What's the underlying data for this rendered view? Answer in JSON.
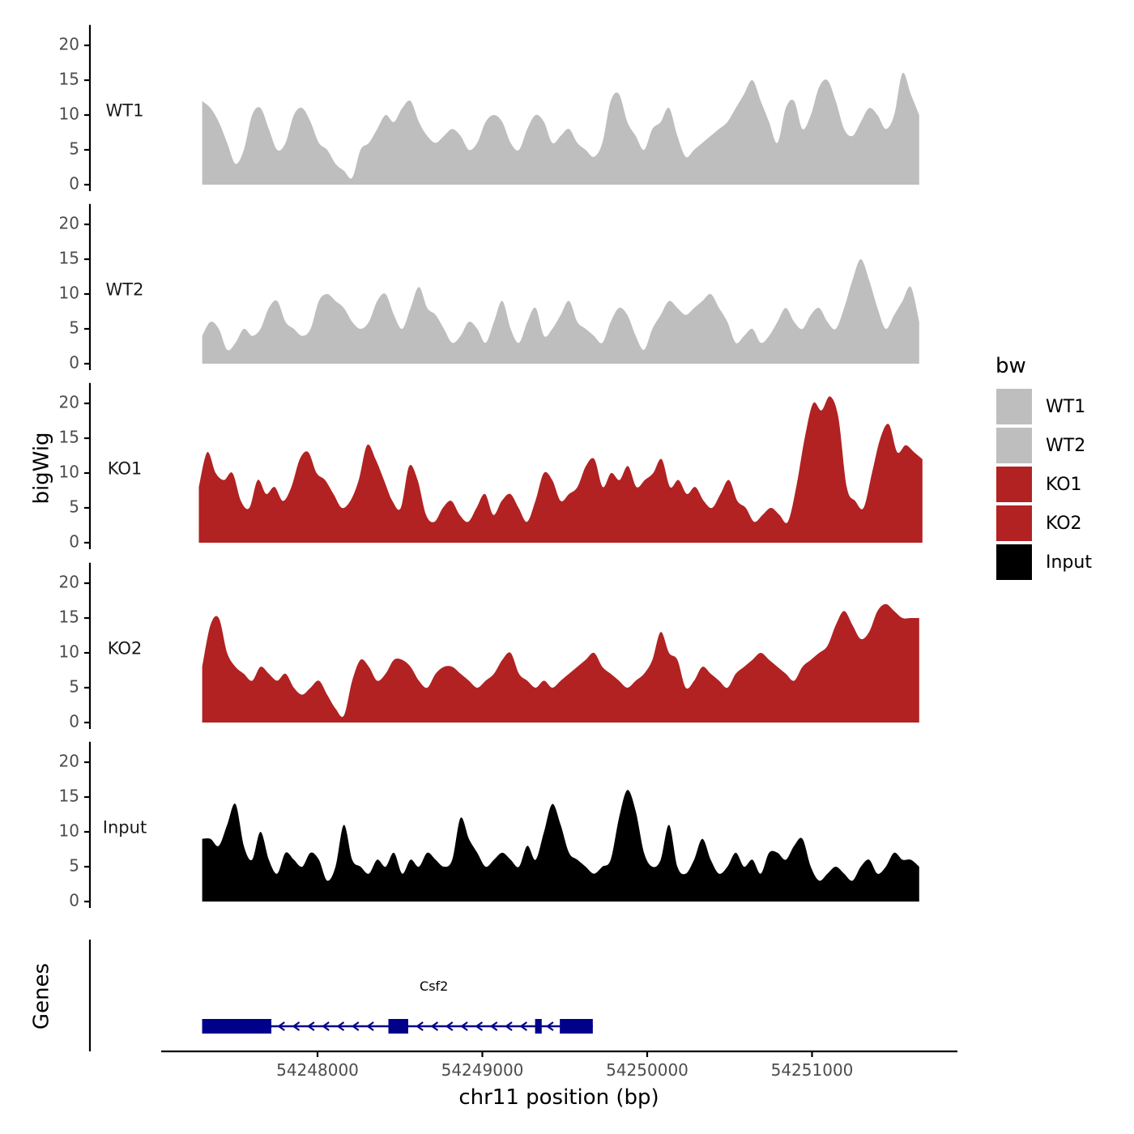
{
  "chart_data": {
    "type": "area",
    "title": "",
    "ylabel": "bigWig",
    "xlabel": "chr11 position (bp)",
    "ylim": [
      0,
      22
    ],
    "yticks": [
      0,
      5,
      10,
      15,
      20
    ],
    "xlim": [
      54246900,
      54251750
    ],
    "xticks": [
      54248000,
      54249000,
      54250000,
      54251000
    ],
    "xtick_labels": [
      "54248000",
      "54249000",
      "54250000",
      "54251000"
    ],
    "genes_label": "Genes",
    "legend": {
      "title": "bw",
      "entries": [
        {
          "label": "WT1",
          "color": "#bebebe"
        },
        {
          "label": "WT2",
          "color": "#bebebe"
        },
        {
          "label": "KO1",
          "color": "#b22222"
        },
        {
          "label": "KO2",
          "color": "#b22222"
        },
        {
          "label": "Input",
          "color": "#000000"
        }
      ]
    },
    "series": [
      {
        "name": "WT1",
        "color": "#bebebe",
        "x_start": 54247300,
        "x_end": 54251650,
        "values": [
          12,
          11,
          9,
          6,
          3,
          5,
          10,
          11,
          8,
          5,
          6,
          10,
          11,
          9,
          6,
          5,
          3,
          2,
          1,
          5,
          6,
          8,
          10,
          9,
          11,
          12,
          9,
          7,
          6,
          7,
          8,
          7,
          5,
          6,
          9,
          10,
          9,
          6,
          5,
          8,
          10,
          9,
          6,
          7,
          8,
          6,
          5,
          4,
          6,
          12,
          13,
          9,
          7,
          5,
          8,
          9,
          11,
          7,
          4,
          5,
          6,
          7,
          8,
          9,
          11,
          13,
          15,
          12,
          9,
          6,
          11,
          12,
          8,
          10,
          14,
          15,
          12,
          8,
          7,
          9,
          11,
          10,
          8,
          10,
          16,
          13,
          10
        ]
      },
      {
        "name": "WT2",
        "color": "#bebebe",
        "x_start": 54247300,
        "x_end": 54251650,
        "values": [
          4,
          6,
          5,
          2,
          3,
          5,
          4,
          5,
          8,
          9,
          6,
          5,
          4,
          5,
          9,
          10,
          9,
          8,
          6,
          5,
          6,
          9,
          10,
          7,
          5,
          8,
          11,
          8,
          7,
          5,
          3,
          4,
          6,
          5,
          3,
          6,
          9,
          5,
          3,
          6,
          8,
          4,
          5,
          7,
          9,
          6,
          5,
          4,
          3,
          6,
          8,
          7,
          4,
          2,
          5,
          7,
          9,
          8,
          7,
          8,
          9,
          10,
          8,
          6,
          3,
          4,
          5,
          3,
          4,
          6,
          8,
          6,
          5,
          7,
          8,
          6,
          5,
          8,
          12,
          15,
          12,
          8,
          5,
          7,
          9,
          11,
          6
        ]
      },
      {
        "name": "KO1",
        "color": "#b22222",
        "x_start": 54247280,
        "x_end": 54251670,
        "values": [
          8,
          13,
          10,
          9,
          10,
          6,
          5,
          9,
          7,
          8,
          6,
          8,
          12,
          13,
          10,
          9,
          7,
          5,
          6,
          9,
          14,
          12,
          9,
          6,
          5,
          11,
          9,
          4,
          3,
          5,
          6,
          4,
          3,
          5,
          7,
          4,
          6,
          7,
          5,
          3,
          6,
          10,
          9,
          6,
          7,
          8,
          11,
          12,
          8,
          10,
          9,
          11,
          8,
          9,
          10,
          12,
          8,
          9,
          7,
          8,
          6,
          5,
          7,
          9,
          6,
          5,
          3,
          4,
          5,
          4,
          3,
          8,
          15,
          20,
          19,
          21,
          18,
          8,
          6,
          5,
          10,
          15,
          17,
          13,
          14,
          13,
          12
        ]
      },
      {
        "name": "KO2",
        "color": "#b22222",
        "x_start": 54247300,
        "x_end": 54251650,
        "values": [
          8,
          14,
          15,
          10,
          8,
          7,
          6,
          8,
          7,
          6,
          7,
          5,
          4,
          5,
          6,
          4,
          2,
          1,
          6,
          9,
          8,
          6,
          7,
          9,
          9,
          8,
          6,
          5,
          7,
          8,
          8,
          7,
          6,
          5,
          6,
          7,
          9,
          10,
          7,
          6,
          5,
          6,
          5,
          6,
          7,
          8,
          9,
          10,
          8,
          7,
          6,
          5,
          6,
          7,
          9,
          13,
          10,
          9,
          5,
          6,
          8,
          7,
          6,
          5,
          7,
          8,
          9,
          10,
          9,
          8,
          7,
          6,
          8,
          9,
          10,
          11,
          14,
          16,
          14,
          12,
          13,
          16,
          17,
          16,
          15,
          15,
          15
        ]
      },
      {
        "name": "Input",
        "color": "#000000",
        "x_start": 54247300,
        "x_end": 54251650,
        "values": [
          9,
          9,
          8,
          11,
          14,
          8,
          6,
          10,
          6,
          4,
          7,
          6,
          5,
          7,
          6,
          3,
          5,
          11,
          6,
          5,
          4,
          6,
          5,
          7,
          4,
          6,
          5,
          7,
          6,
          5,
          6,
          12,
          9,
          7,
          5,
          6,
          7,
          6,
          5,
          8,
          6,
          10,
          14,
          11,
          7,
          6,
          5,
          4,
          5,
          6,
          12,
          16,
          13,
          7,
          5,
          6,
          11,
          5,
          4,
          6,
          9,
          6,
          4,
          5,
          7,
          5,
          6,
          4,
          7,
          7,
          6,
          8,
          9,
          5,
          3,
          4,
          5,
          4,
          3,
          5,
          6,
          4,
          5,
          7,
          6,
          6,
          5
        ]
      }
    ],
    "genes": [
      {
        "name": "Csf2",
        "strand": "-",
        "start": 54247300,
        "end": 54249670,
        "color": "#00008b",
        "exons": [
          [
            54247300,
            54247720
          ],
          [
            54248430,
            54248550
          ],
          [
            54249320,
            54249360
          ],
          [
            54249470,
            54249670
          ]
        ],
        "arrow_positions": [
          54247780,
          54247870,
          54247960,
          54248050,
          54248140,
          54248230,
          54248320,
          54248620,
          54248710,
          54248800,
          54248890,
          54248980,
          54249070,
          54249160,
          54249250,
          54249410
        ]
      }
    ]
  }
}
